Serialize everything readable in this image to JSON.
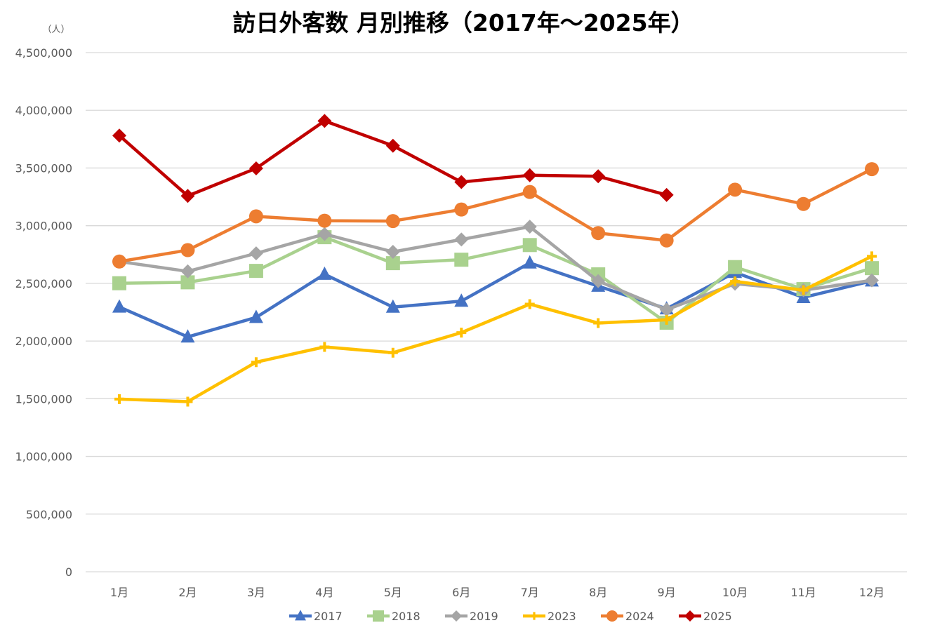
{
  "chart_data": {
    "type": "line",
    "title": "訪日外客数 月別推移（2017年～2025年）",
    "ylabel": "（人）",
    "xlabel": "",
    "ylim": [
      0,
      4500000
    ],
    "ytick_step": 500000,
    "yticks": [
      "0",
      "500,000",
      "1,000,000",
      "1,500,000",
      "2,000,000",
      "2,500,000",
      "3,000,000",
      "3,500,000",
      "4,000,000",
      "4,500,000"
    ],
    "grid": true,
    "legend_position": "bottom",
    "categories": [
      "1月",
      "2月",
      "3月",
      "4月",
      "5月",
      "6月",
      "7月",
      "8月",
      "9月",
      "10月",
      "11月",
      "12月"
    ],
    "series": [
      {
        "name": "2017",
        "color": "#4472c4",
        "marker": "triangle",
        "values": [
          2295000,
          2036000,
          2205000,
          2579000,
          2294000,
          2346000,
          2677000,
          2476000,
          2280000,
          2595000,
          2378000,
          2521000
        ]
      },
      {
        "name": "2018",
        "color": "#a9d18e",
        "marker": "square",
        "values": [
          2501000,
          2509000,
          2608000,
          2900000,
          2675000,
          2705000,
          2832000,
          2578000,
          2159000,
          2641000,
          2450000,
          2632000
        ]
      },
      {
        "name": "2019",
        "color": "#a5a5a5",
        "marker": "diamond",
        "values": [
          2689000,
          2604000,
          2760000,
          2927000,
          2773000,
          2880000,
          2991000,
          2520000,
          2272000,
          2497000,
          2441000,
          2526000
        ]
      },
      {
        "name": "2023",
        "color": "#ffc000",
        "marker": "plus",
        "values": [
          1497000,
          1475000,
          1817000,
          1949000,
          1899000,
          2073000,
          2320000,
          2156000,
          2184000,
          2517000,
          2441000,
          2734000
        ]
      },
      {
        "name": "2024",
        "color": "#ed7d31",
        "marker": "circle",
        "values": [
          2689000,
          2788000,
          3081000,
          3043000,
          3040000,
          3140000,
          3292000,
          2936000,
          2872000,
          3312000,
          3188000,
          3490000
        ]
      },
      {
        "name": "2025",
        "color": "#c00000",
        "marker": "diamond",
        "values": [
          3781000,
          3258000,
          3497000,
          3908000,
          3693000,
          3378000,
          3437000,
          3428000,
          3266000,
          null,
          null,
          null
        ]
      }
    ]
  }
}
